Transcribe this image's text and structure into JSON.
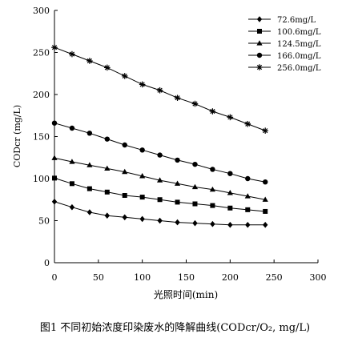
{
  "chart_data": {
    "type": "line",
    "x": [
      0,
      20,
      40,
      60,
      80,
      100,
      120,
      140,
      160,
      180,
      200,
      220,
      240
    ],
    "series": [
      {
        "name": "72.6mg/L",
        "marker": "diamond",
        "values": [
          72.6,
          66,
          60,
          56,
          54,
          52,
          50,
          48,
          47,
          46,
          45,
          45,
          45
        ]
      },
      {
        "name": "100.6mg/L",
        "marker": "square",
        "values": [
          100.6,
          94,
          88,
          84,
          80,
          78,
          75,
          72,
          70,
          68,
          65,
          63,
          61
        ]
      },
      {
        "name": "124.5mg/L",
        "marker": "triangle",
        "values": [
          124.5,
          120,
          116,
          112,
          108,
          103,
          98,
          94,
          90,
          87,
          83,
          79,
          75
        ]
      },
      {
        "name": "166.0mg/L",
        "marker": "circle",
        "values": [
          166,
          160,
          154,
          147,
          140,
          134,
          128,
          122,
          117,
          111,
          106,
          100,
          96
        ]
      },
      {
        "name": "256.0mg/L",
        "marker": "asterisk",
        "values": [
          256,
          248,
          240,
          232,
          222,
          212,
          205,
          196,
          189,
          180,
          173,
          165,
          157
        ]
      }
    ],
    "xlabel": "光照时间(min)",
    "ylabel": "CODcr (mg/L)",
    "xlim": [
      0,
      300
    ],
    "ylim": [
      0,
      300
    ],
    "xticks": [
      "0",
      "50",
      "100",
      "150",
      "200",
      "250",
      "300"
    ],
    "yticks": [
      "0",
      "50",
      "100",
      "150",
      "200",
      "250",
      "300"
    ],
    "grid": false,
    "legend": "top-right",
    "color": "#000000"
  },
  "caption": "图1 不同初始浓度印染废水的降解曲线(CODcr/O₂, mg/L)"
}
